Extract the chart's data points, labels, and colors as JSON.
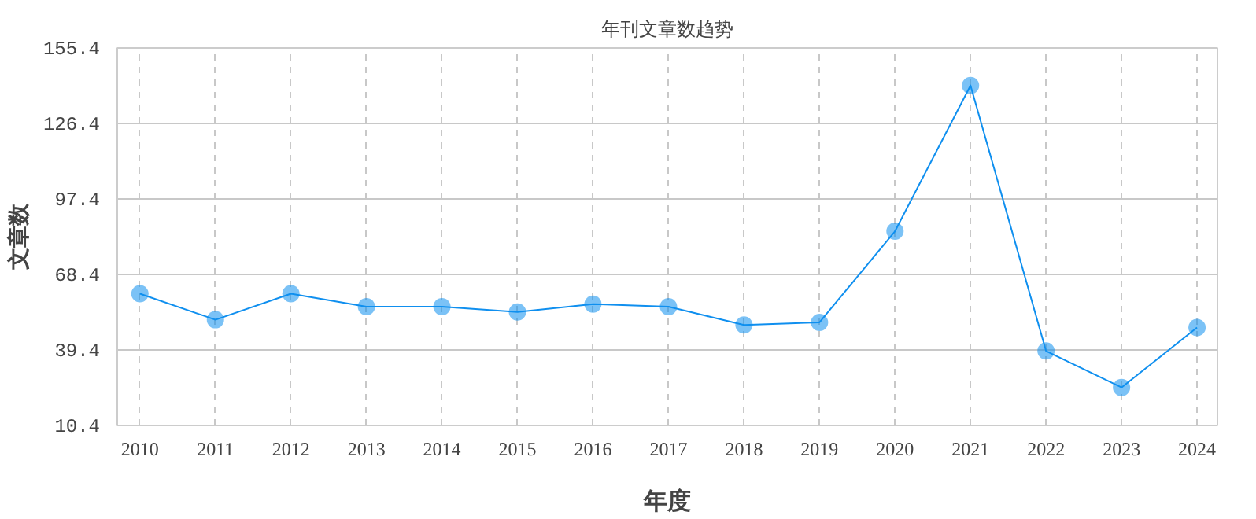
{
  "chart_data": {
    "type": "line",
    "title": "年刊文章数趋势",
    "xlabel": "年度",
    "ylabel": "文章数",
    "categories": [
      "2010",
      "2011",
      "2012",
      "2013",
      "2014",
      "2015",
      "2016",
      "2017",
      "2018",
      "2019",
      "2020",
      "2021",
      "2022",
      "2023",
      "2024"
    ],
    "series": [
      {
        "color": "#0f8fef",
        "values": [
          61,
          51,
          61,
          56,
          56,
          54,
          57,
          56,
          49,
          50,
          85,
          141,
          39,
          25,
          48
        ]
      }
    ],
    "ylim": [
      10.4,
      155.4
    ],
    "yticks": [
      10.4,
      39.4,
      68.4,
      97.4,
      126.4,
      155.4
    ],
    "grid": true,
    "marker": "circle",
    "line_style": "solid"
  }
}
